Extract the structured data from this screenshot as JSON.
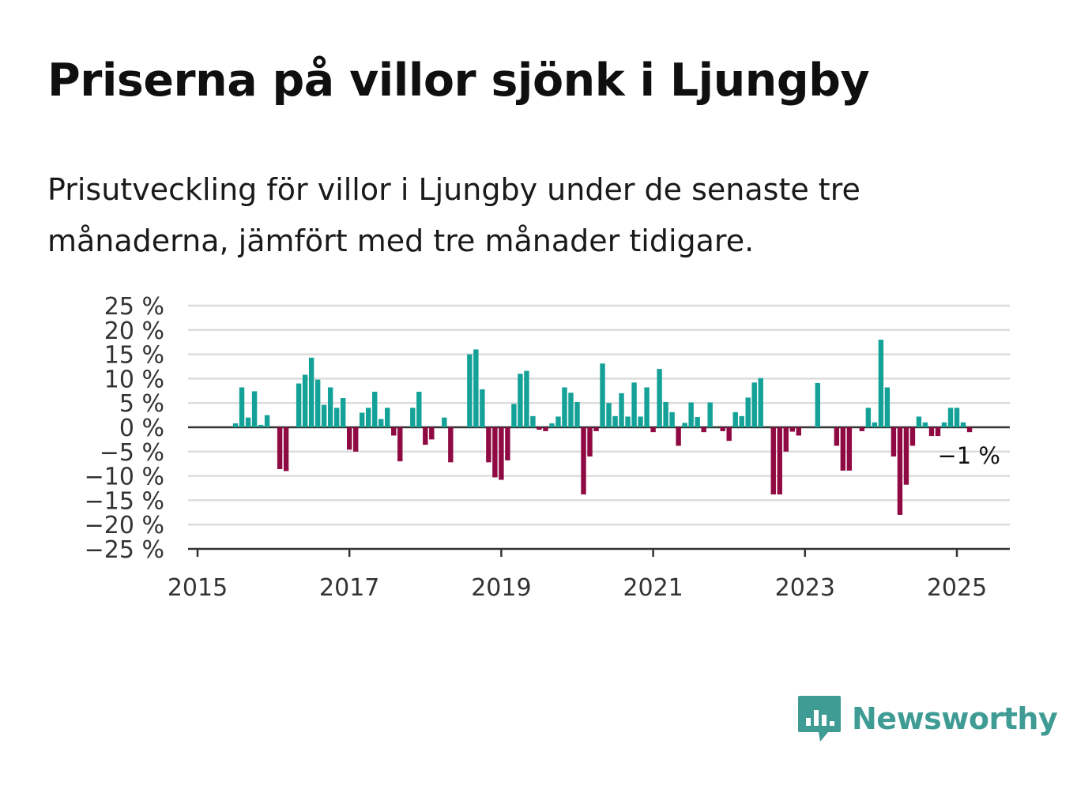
{
  "title": "Priserna på villor sjönk i Ljungby",
  "subtitle": "Prisutveckling för villor i Ljungby under de senaste tre månaderna, jämfört med tre månader tidigare.",
  "brand": {
    "name": "Newsworthy",
    "color": "#3f9c94",
    "icon": "bar-chart-speech-bubble-icon"
  },
  "colors": {
    "positive": "#14a197",
    "negative": "#8f0942",
    "grid": "#dcdcdc",
    "axis": "#333333"
  },
  "chart_data": {
    "type": "bar",
    "ylim": [
      -25,
      25
    ],
    "yticks": [
      25,
      20,
      15,
      10,
      5,
      0,
      -5,
      -10,
      -15,
      -20,
      -25
    ],
    "ytick_labels": [
      "25 %",
      "20 %",
      "15 %",
      "10 %",
      "5 %",
      "0 %",
      "−5 %",
      "−10 %",
      "−15 %",
      "−20 %",
      "−25 %"
    ],
    "xlim": [
      "2015-01",
      "2025-09"
    ],
    "xticks": [
      "2015",
      "2017",
      "2019",
      "2021",
      "2023",
      "2025"
    ],
    "last_value_label": "−1 %",
    "grid": true,
    "dates": [
      "2015-01",
      "2015-02",
      "2015-03",
      "2015-04",
      "2015-05",
      "2015-06",
      "2015-07",
      "2015-08",
      "2015-09",
      "2015-10",
      "2015-11",
      "2015-12",
      "2016-01",
      "2016-02",
      "2016-03",
      "2016-04",
      "2016-05",
      "2016-06",
      "2016-07",
      "2016-08",
      "2016-09",
      "2016-10",
      "2016-11",
      "2016-12",
      "2017-01",
      "2017-02",
      "2017-03",
      "2017-04",
      "2017-05",
      "2017-06",
      "2017-07",
      "2017-08",
      "2017-09",
      "2017-10",
      "2017-11",
      "2017-12",
      "2018-01",
      "2018-02",
      "2018-03",
      "2018-04",
      "2018-05",
      "2018-06",
      "2018-07",
      "2018-08",
      "2018-09",
      "2018-10",
      "2018-11",
      "2018-12",
      "2019-01",
      "2019-02",
      "2019-03",
      "2019-04",
      "2019-05",
      "2019-06",
      "2019-07",
      "2019-08",
      "2019-09",
      "2019-10",
      "2019-11",
      "2019-12",
      "2020-01",
      "2020-02",
      "2020-03",
      "2020-04",
      "2020-05",
      "2020-06",
      "2020-07",
      "2020-08",
      "2020-09",
      "2020-10",
      "2020-11",
      "2020-12",
      "2021-01",
      "2021-02",
      "2021-03",
      "2021-04",
      "2021-05",
      "2021-06",
      "2021-07",
      "2021-08",
      "2021-09",
      "2021-10",
      "2021-11",
      "2021-12",
      "2022-01",
      "2022-02",
      "2022-03",
      "2022-04",
      "2022-05",
      "2022-06",
      "2022-07",
      "2022-08",
      "2022-09",
      "2022-10",
      "2022-11",
      "2022-12",
      "2023-01",
      "2023-02",
      "2023-03",
      "2023-04",
      "2023-05",
      "2023-06",
      "2023-07",
      "2023-08",
      "2023-09",
      "2023-10",
      "2023-11",
      "2023-12",
      "2024-01",
      "2024-02",
      "2024-03",
      "2024-04",
      "2024-05",
      "2024-06",
      "2024-07",
      "2024-08",
      "2024-09",
      "2024-10",
      "2024-11",
      "2024-12",
      "2025-01",
      "2025-02",
      "2025-03"
    ],
    "values": [
      null,
      null,
      null,
      null,
      null,
      null,
      0.8,
      8.2,
      2.0,
      7.4,
      0.5,
      2.5,
      null,
      -8.6,
      -9.0,
      null,
      9.0,
      10.8,
      14.3,
      9.8,
      4.6,
      8.2,
      4.0,
      6.0,
      -4.6,
      -5.0,
      3.0,
      4.0,
      7.3,
      1.7,
      4.0,
      -1.7,
      -7.0,
      null,
      4.0,
      7.3,
      -3.6,
      -2.5,
      null,
      2.0,
      -7.2,
      null,
      null,
      15.0,
      16.0,
      7.8,
      -7.2,
      -10.3,
      -10.8,
      -6.8,
      4.8,
      11.0,
      11.6,
      2.3,
      -0.5,
      -0.8,
      0.8,
      2.2,
      8.2,
      7.1,
      5.2,
      -13.8,
      -6.0,
      -0.8,
      13.1,
      5.0,
      2.3,
      7.0,
      2.2,
      9.2,
      2.2,
      8.2,
      -1.0,
      12.0,
      5.2,
      3.1,
      -3.8,
      0.9,
      5.1,
      2.1,
      -1.0,
      5.1,
      null,
      -0.8,
      -2.8,
      3.1,
      2.3,
      6.1,
      9.2,
      10.1,
      null,
      -13.8,
      -13.8,
      -5.0,
      -0.9,
      -1.7,
      null,
      null,
      9.1,
      null,
      null,
      -3.8,
      -8.9,
      -8.9,
      null,
      -0.8,
      4.0,
      1.0,
      18.0,
      8.2,
      -6.0,
      -18.0,
      -11.8,
      -3.8,
      2.2,
      1.0,
      -1.8,
      -1.8,
      1.0,
      4.0,
      4.0,
      1.0,
      -1.0
    ]
  }
}
